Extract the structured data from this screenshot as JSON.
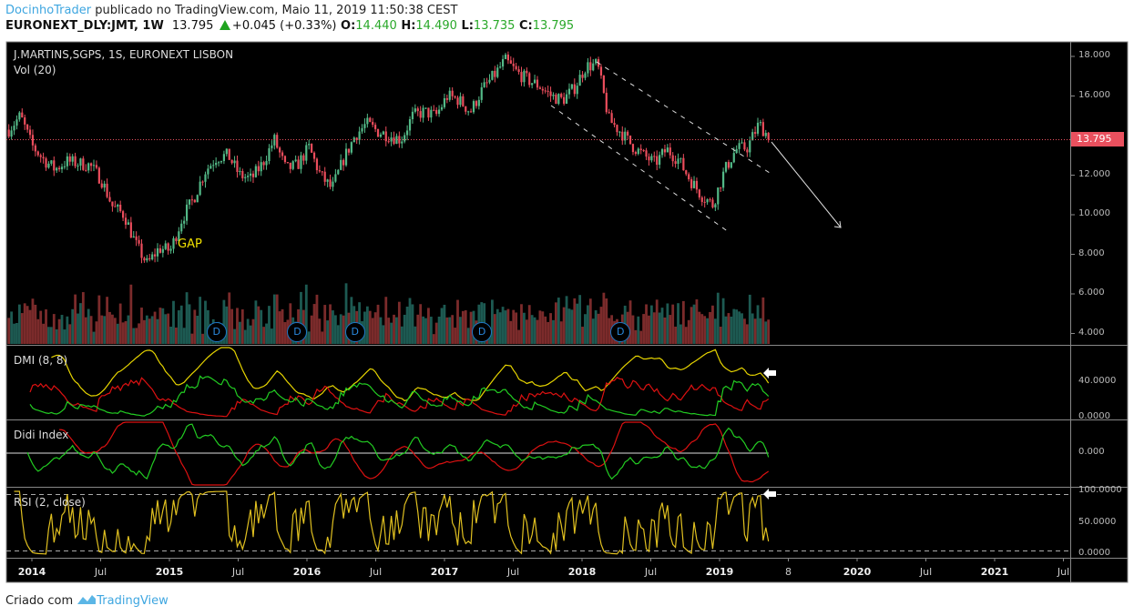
{
  "header": {
    "user": "DocinhoTrader",
    "published": "publicado no TradingView.com, Maio 11, 2019 11:50:38 CEST",
    "symbol": "EURONEXT_DLY:JMT, 1W",
    "last": "13.795",
    "change": "+0.045 (+0.33%)",
    "o_label": "O:",
    "o": "14.440",
    "h_label": "H:",
    "h": "14.490",
    "l_label": "L:",
    "l": "13.735",
    "c_label": "C:",
    "c": "13.795"
  },
  "panes": {
    "main_title": "J.MARTINS,SGPS, 1S, EURONEXT LISBON",
    "vol_title": "Vol (20)",
    "dmi_title": "DMI (8, 8)",
    "didi_title": "Didi Index",
    "rsi_title": "RSI (2, close)"
  },
  "annotations": {
    "gap": "GAP",
    "dividend_marker": "D"
  },
  "price_tag": "13.795",
  "footer": {
    "created": "Criado com",
    "brand": "TradingView"
  },
  "colors": {
    "up": "#53b987",
    "down": "#eb4d5c",
    "vol_up": "#1d5a52",
    "vol_down": "#7b2b2b",
    "plus_di": "#22cc22",
    "minus_di": "#dd1111",
    "adx": "#e6d400",
    "rsi": "#e0c020",
    "price_line": "#e9505e"
  },
  "chart_data": {
    "type": "candlestick",
    "title": "J.MARTINS,SGPS, 1S, EURONEXT LISBON",
    "interval": "1W",
    "start_month": "2013-11",
    "monthly_close_approx": [
      14.3,
      15.0,
      13.5,
      12.8,
      12.3,
      12.7,
      12.6,
      12.5,
      11.8,
      10.4,
      10.0,
      8.5,
      7.5,
      8.3,
      8.2,
      9.8,
      10.8,
      12.2,
      12.9,
      13.0,
      12.0,
      11.8,
      12.6,
      13.8,
      12.3,
      12.5,
      13.4,
      12.0,
      11.3,
      12.8,
      14.0,
      14.6,
      14.2,
      14.0,
      13.8,
      15.0,
      15.2,
      15.0,
      16.0,
      15.8,
      15.2,
      16.3,
      17.0,
      17.8,
      17.2,
      16.8,
      16.5,
      16.0,
      15.8,
      16.4,
      17.5,
      17.6,
      14.8,
      14.2,
      13.5,
      13.0,
      12.6,
      13.3,
      12.8,
      11.8,
      11.0,
      10.5,
      12.2,
      13.3,
      13.4,
      14.6,
      13.8
    ],
    "last_close": 13.795,
    "price_axis": {
      "ticks": [
        "18.000",
        "16.000",
        "12.000",
        "10.000",
        "8.000",
        "6.000",
        "4.000"
      ],
      "range": [
        3.5,
        18.8
      ]
    },
    "dmi_axis": {
      "ticks": [
        "40.0000",
        "0.0000"
      ]
    },
    "didi_axis": {
      "ticks": [
        "0.000"
      ]
    },
    "rsi_axis": {
      "ticks": [
        "100.0000",
        "50.0000",
        "0.0000"
      ],
      "levels": [
        95,
        5
      ]
    },
    "time_axis": [
      {
        "label": "2014",
        "year": true
      },
      {
        "label": "Jul"
      },
      {
        "label": "2015",
        "year": true
      },
      {
        "label": "Jul"
      },
      {
        "label": "2016",
        "year": true
      },
      {
        "label": "Jul"
      },
      {
        "label": "2017",
        "year": true
      },
      {
        "label": "Jul"
      },
      {
        "label": "2018",
        "year": true
      },
      {
        "label": "Jul"
      },
      {
        "label": "2019",
        "year": true
      },
      {
        "label": "8"
      },
      {
        "label": "2020",
        "year": true
      },
      {
        "label": "Jul"
      },
      {
        "label": "2021",
        "year": true
      },
      {
        "label": "Jul"
      }
    ],
    "dividends_month_index": [
      18,
      25,
      30,
      41,
      53
    ],
    "indicators": [
      "Vol (20)",
      "DMI (8, 8)",
      "Didi Index",
      "RSI (2, close)"
    ]
  }
}
